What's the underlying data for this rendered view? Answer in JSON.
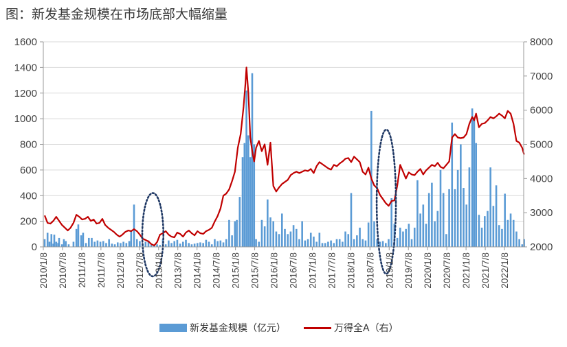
{
  "title": "图：新发基金规模在市场底部大幅缩量",
  "legend": {
    "bar_label": "新发基金规模（亿元）",
    "line_label": "万得全A（右）"
  },
  "colors": {
    "bar": "#5b9bd5",
    "line": "#c00000",
    "grid": "#d9d9d9",
    "ellipse": "#1f3864"
  },
  "chart_data": {
    "type": "bar+line",
    "x_tick_labels": [
      "2010/1/8",
      "2010/7/8",
      "2011/1/8",
      "2011/7/8",
      "2012/1/8",
      "2012/7/8",
      "2013/1/8",
      "2013/7/8",
      "2014/1/8",
      "2014/7/8",
      "2015/1/8",
      "2015/7/8",
      "2016/1/8",
      "2016/7/8",
      "2017/1/8",
      "2017/7/8",
      "2018/1/8",
      "2018/7/8",
      "2019/1/8",
      "2019/7/8",
      "2020/1/8",
      "2020/7/8",
      "2021/1/8",
      "2021/7/8",
      "2022/1/8"
    ],
    "y_left": {
      "min": 0,
      "max": 1600,
      "ticks": [
        0,
        200,
        400,
        600,
        800,
        1000,
        1200,
        1400,
        1600
      ]
    },
    "y_right": {
      "min": 2000,
      "max": 8000,
      "ticks": [
        2000,
        3000,
        4000,
        5000,
        6000,
        7000,
        8000
      ]
    },
    "grid": true,
    "legend_position": "bottom",
    "bar_series": {
      "name": "新发基金规模（亿元）",
      "points": [
        [
          0.0,
          60
        ],
        [
          0.3,
          110
        ],
        [
          0.5,
          40
        ],
        [
          0.7,
          100
        ],
        [
          0.9,
          25
        ],
        [
          1.0,
          95
        ],
        [
          1.2,
          40
        ],
        [
          1.4,
          30
        ],
        [
          1.5,
          70
        ],
        [
          1.8,
          20
        ],
        [
          2.0,
          60
        ],
        [
          2.2,
          45
        ],
        [
          2.5,
          20
        ],
        [
          3.0,
          40
        ],
        [
          3.3,
          140
        ],
        [
          3.5,
          175
        ],
        [
          3.8,
          90
        ],
        [
          4.0,
          110
        ],
        [
          4.3,
          30
        ],
        [
          4.6,
          70
        ],
        [
          4.9,
          70
        ],
        [
          5.2,
          40
        ],
        [
          5.5,
          50
        ],
        [
          5.8,
          40
        ],
        [
          6.1,
          45
        ],
        [
          6.4,
          30
        ],
        [
          6.7,
          60
        ],
        [
          7.0,
          25
        ],
        [
          7.3,
          20
        ],
        [
          7.6,
          35
        ],
        [
          7.9,
          30
        ],
        [
          8.2,
          40
        ],
        [
          8.5,
          30
        ],
        [
          8.8,
          45
        ],
        [
          9.0,
          120
        ],
        [
          9.3,
          330
        ],
        [
          9.6,
          60
        ],
        [
          9.9,
          45
        ],
        [
          10.2,
          20
        ],
        [
          10.5,
          40
        ],
        [
          10.8,
          50
        ],
        [
          11.1,
          20
        ],
        [
          11.4,
          15
        ],
        [
          11.7,
          20
        ],
        [
          12.0,
          15
        ],
        [
          12.3,
          60
        ],
        [
          12.6,
          20
        ],
        [
          12.9,
          50
        ],
        [
          13.2,
          30
        ],
        [
          13.5,
          45
        ],
        [
          13.8,
          55
        ],
        [
          14.1,
          25
        ],
        [
          14.4,
          40
        ],
        [
          14.7,
          55
        ],
        [
          15.0,
          30
        ],
        [
          15.3,
          20
        ],
        [
          15.6,
          25
        ],
        [
          15.9,
          30
        ],
        [
          16.2,
          35
        ],
        [
          16.5,
          30
        ],
        [
          16.8,
          55
        ],
        [
          17.1,
          40
        ],
        [
          17.4,
          20
        ],
        [
          17.7,
          60
        ],
        [
          18.0,
          45
        ],
        [
          18.3,
          50
        ],
        [
          18.6,
          35
        ],
        [
          18.9,
          60
        ],
        [
          19.2,
          210
        ],
        [
          19.5,
          90
        ],
        [
          19.8,
          200
        ],
        [
          20.0,
          210
        ],
        [
          20.3,
          390
        ],
        [
          20.6,
          700
        ],
        [
          20.8,
          810
        ],
        [
          21.0,
          1220
        ],
        [
          21.2,
          870
        ],
        [
          21.4,
          700
        ],
        [
          21.6,
          1355
        ],
        [
          21.8,
          800
        ],
        [
          22.0,
          60
        ],
        [
          22.3,
          40
        ],
        [
          22.6,
          210
        ],
        [
          22.9,
          160
        ],
        [
          23.2,
          370
        ],
        [
          23.5,
          230
        ],
        [
          23.8,
          200
        ],
        [
          24.1,
          120
        ],
        [
          24.4,
          100
        ],
        [
          24.7,
          260
        ],
        [
          25.0,
          140
        ],
        [
          25.3,
          100
        ],
        [
          25.6,
          120
        ],
        [
          25.9,
          170
        ],
        [
          26.2,
          140
        ],
        [
          26.5,
          60
        ],
        [
          26.8,
          200
        ],
        [
          27.1,
          50
        ],
        [
          27.4,
          60
        ],
        [
          27.7,
          110
        ],
        [
          28.0,
          80
        ],
        [
          28.3,
          40
        ],
        [
          28.6,
          110
        ],
        [
          28.9,
          30
        ],
        [
          29.2,
          30
        ],
        [
          29.5,
          40
        ],
        [
          29.8,
          50
        ],
        [
          30.1,
          30
        ],
        [
          30.4,
          60
        ],
        [
          30.7,
          60
        ],
        [
          31.0,
          40
        ],
        [
          31.3,
          120
        ],
        [
          31.6,
          100
        ],
        [
          31.9,
          420
        ],
        [
          32.2,
          60
        ],
        [
          32.5,
          90
        ],
        [
          32.8,
          150
        ],
        [
          33.1,
          60
        ],
        [
          33.4,
          50
        ],
        [
          33.7,
          190
        ],
        [
          34.0,
          1060
        ],
        [
          34.3,
          200
        ],
        [
          34.6,
          60
        ],
        [
          34.9,
          40
        ],
        [
          35.2,
          45
        ],
        [
          35.5,
          30
        ],
        [
          35.8,
          60
        ],
        [
          36.1,
          380
        ],
        [
          36.4,
          180
        ],
        [
          36.7,
          70
        ],
        [
          37.0,
          150
        ],
        [
          37.3,
          120
        ],
        [
          37.6,
          140
        ],
        [
          37.9,
          180
        ],
        [
          38.2,
          60
        ],
        [
          38.5,
          150
        ],
        [
          38.8,
          520
        ],
        [
          39.1,
          260
        ],
        [
          39.4,
          330
        ],
        [
          39.7,
          180
        ],
        [
          40.0,
          420
        ],
        [
          40.3,
          500
        ],
        [
          40.6,
          200
        ],
        [
          40.9,
          280
        ],
        [
          41.2,
          600
        ],
        [
          41.5,
          420
        ],
        [
          41.8,
          100
        ],
        [
          42.1,
          450
        ],
        [
          42.4,
          970
        ],
        [
          42.7,
          450
        ],
        [
          43.0,
          600
        ],
        [
          43.3,
          800
        ],
        [
          43.6,
          460
        ],
        [
          43.9,
          330
        ],
        [
          44.2,
          620
        ],
        [
          44.5,
          1080
        ],
        [
          44.7,
          1010
        ],
        [
          44.9,
          810
        ],
        [
          45.2,
          250
        ],
        [
          45.5,
          150
        ],
        [
          45.8,
          240
        ],
        [
          46.1,
          280
        ],
        [
          46.4,
          620
        ],
        [
          46.7,
          320
        ],
        [
          47.0,
          480
        ],
        [
          47.3,
          170
        ],
        [
          47.6,
          140
        ],
        [
          47.9,
          415
        ],
        [
          48.2,
          210
        ],
        [
          48.5,
          260
        ],
        [
          48.8,
          210
        ],
        [
          49.1,
          120
        ],
        [
          49.4,
          60
        ],
        [
          49.7,
          20
        ],
        [
          49.9,
          60
        ]
      ]
    },
    "line_series": {
      "name": "万得全A（右）",
      "points": [
        [
          0.0,
          2920
        ],
        [
          0.3,
          2700
        ],
        [
          0.6,
          2680
        ],
        [
          0.9,
          2760
        ],
        [
          1.2,
          2880
        ],
        [
          1.5,
          2760
        ],
        [
          1.8,
          2640
        ],
        [
          2.1,
          2560
        ],
        [
          2.4,
          2480
        ],
        [
          2.7,
          2560
        ],
        [
          3.0,
          2700
        ],
        [
          3.3,
          2940
        ],
        [
          3.6,
          2880
        ],
        [
          3.9,
          2800
        ],
        [
          4.2,
          2820
        ],
        [
          4.5,
          2880
        ],
        [
          4.8,
          2760
        ],
        [
          5.1,
          2800
        ],
        [
          5.4,
          2680
        ],
        [
          5.7,
          2700
        ],
        [
          6.0,
          2820
        ],
        [
          6.3,
          2640
        ],
        [
          6.6,
          2560
        ],
        [
          6.9,
          2500
        ],
        [
          7.2,
          2440
        ],
        [
          7.5,
          2360
        ],
        [
          7.8,
          2300
        ],
        [
          8.1,
          2360
        ],
        [
          8.4,
          2440
        ],
        [
          8.7,
          2480
        ],
        [
          9.0,
          2460
        ],
        [
          9.3,
          2520
        ],
        [
          9.6,
          2460
        ],
        [
          9.9,
          2360
        ],
        [
          10.2,
          2240
        ],
        [
          10.5,
          2200
        ],
        [
          10.8,
          2160
        ],
        [
          11.1,
          2080
        ],
        [
          11.4,
          2040
        ],
        [
          11.7,
          2140
        ],
        [
          12.0,
          2360
        ],
        [
          12.3,
          2400
        ],
        [
          12.6,
          2460
        ],
        [
          12.9,
          2360
        ],
        [
          13.2,
          2300
        ],
        [
          13.5,
          2280
        ],
        [
          13.8,
          2420
        ],
        [
          14.1,
          2380
        ],
        [
          14.4,
          2300
        ],
        [
          14.7,
          2420
        ],
        [
          15.0,
          2480
        ],
        [
          15.3,
          2400
        ],
        [
          15.6,
          2340
        ],
        [
          15.9,
          2460
        ],
        [
          16.2,
          2400
        ],
        [
          16.5,
          2380
        ],
        [
          16.8,
          2460
        ],
        [
          17.1,
          2500
        ],
        [
          17.4,
          2560
        ],
        [
          17.7,
          2740
        ],
        [
          18.0,
          2900
        ],
        [
          18.3,
          3120
        ],
        [
          18.6,
          3500
        ],
        [
          18.9,
          3560
        ],
        [
          19.2,
          3680
        ],
        [
          19.5,
          3920
        ],
        [
          19.8,
          4200
        ],
        [
          20.1,
          4900
        ],
        [
          20.4,
          5300
        ],
        [
          20.7,
          6100
        ],
        [
          20.9,
          6800
        ],
        [
          21.0,
          7250
        ],
        [
          21.2,
          6500
        ],
        [
          21.4,
          5200
        ],
        [
          21.6,
          4800
        ],
        [
          21.8,
          4500
        ],
        [
          22.0,
          4900
        ],
        [
          22.3,
          5100
        ],
        [
          22.6,
          4800
        ],
        [
          22.9,
          5000
        ],
        [
          23.2,
          4400
        ],
        [
          23.5,
          5050
        ],
        [
          23.8,
          3780
        ],
        [
          24.1,
          3620
        ],
        [
          24.4,
          3740
        ],
        [
          24.7,
          3840
        ],
        [
          25.0,
          3900
        ],
        [
          25.3,
          3960
        ],
        [
          25.6,
          4100
        ],
        [
          25.9,
          4160
        ],
        [
          26.2,
          4200
        ],
        [
          26.5,
          4160
        ],
        [
          26.8,
          4200
        ],
        [
          27.1,
          4240
        ],
        [
          27.4,
          4220
        ],
        [
          27.7,
          4280
        ],
        [
          28.0,
          4160
        ],
        [
          28.3,
          4360
        ],
        [
          28.6,
          4480
        ],
        [
          28.9,
          4420
        ],
        [
          29.2,
          4360
        ],
        [
          29.5,
          4300
        ],
        [
          29.8,
          4260
        ],
        [
          30.1,
          4400
        ],
        [
          30.4,
          4360
        ],
        [
          30.7,
          4440
        ],
        [
          31.0,
          4500
        ],
        [
          31.3,
          4580
        ],
        [
          31.6,
          4600
        ],
        [
          31.9,
          4480
        ],
        [
          32.2,
          4640
        ],
        [
          32.5,
          4560
        ],
        [
          32.8,
          4480
        ],
        [
          33.1,
          4200
        ],
        [
          33.4,
          4120
        ],
        [
          33.7,
          4320
        ],
        [
          34.0,
          4000
        ],
        [
          34.3,
          3800
        ],
        [
          34.6,
          3720
        ],
        [
          34.9,
          3520
        ],
        [
          35.2,
          3400
        ],
        [
          35.5,
          3280
        ],
        [
          35.8,
          3200
        ],
        [
          36.1,
          3340
        ],
        [
          36.4,
          3360
        ],
        [
          36.7,
          3800
        ],
        [
          37.0,
          4400
        ],
        [
          37.3,
          4200
        ],
        [
          37.6,
          4000
        ],
        [
          37.9,
          4180
        ],
        [
          38.2,
          4120
        ],
        [
          38.5,
          4100
        ],
        [
          38.8,
          4200
        ],
        [
          39.1,
          4280
        ],
        [
          39.4,
          4120
        ],
        [
          39.7,
          4240
        ],
        [
          40.0,
          4320
        ],
        [
          40.3,
          4400
        ],
        [
          40.6,
          4360
        ],
        [
          40.9,
          4460
        ],
        [
          41.2,
          4340
        ],
        [
          41.5,
          4300
        ],
        [
          41.8,
          4400
        ],
        [
          42.1,
          4500
        ],
        [
          42.4,
          5200
        ],
        [
          42.7,
          5300
        ],
        [
          43.0,
          5200
        ],
        [
          43.3,
          5180
        ],
        [
          43.6,
          5200
        ],
        [
          43.9,
          5300
        ],
        [
          44.2,
          5600
        ],
        [
          44.5,
          5800
        ],
        [
          44.7,
          5700
        ],
        [
          44.9,
          5900
        ],
        [
          45.2,
          5500
        ],
        [
          45.5,
          5600
        ],
        [
          45.8,
          5620
        ],
        [
          46.1,
          5700
        ],
        [
          46.4,
          5800
        ],
        [
          46.7,
          5760
        ],
        [
          47.0,
          5820
        ],
        [
          47.3,
          5900
        ],
        [
          47.6,
          5840
        ],
        [
          47.9,
          5760
        ],
        [
          48.2,
          5980
        ],
        [
          48.5,
          5900
        ],
        [
          48.8,
          5600
        ],
        [
          49.1,
          5100
        ],
        [
          49.4,
          5050
        ],
        [
          49.7,
          4900
        ],
        [
          49.9,
          4700
        ]
      ]
    },
    "annotations": [
      {
        "type": "dotted-ellipse",
        "x_center": 11.4,
        "x_halfwidth": 1.1,
        "y_left_top": 420,
        "y_left_bottom": -230
      },
      {
        "type": "dotted-ellipse",
        "x_center": 35.7,
        "x_halfwidth": 1.0,
        "y_left_top": 915,
        "y_left_bottom": -210
      }
    ]
  }
}
